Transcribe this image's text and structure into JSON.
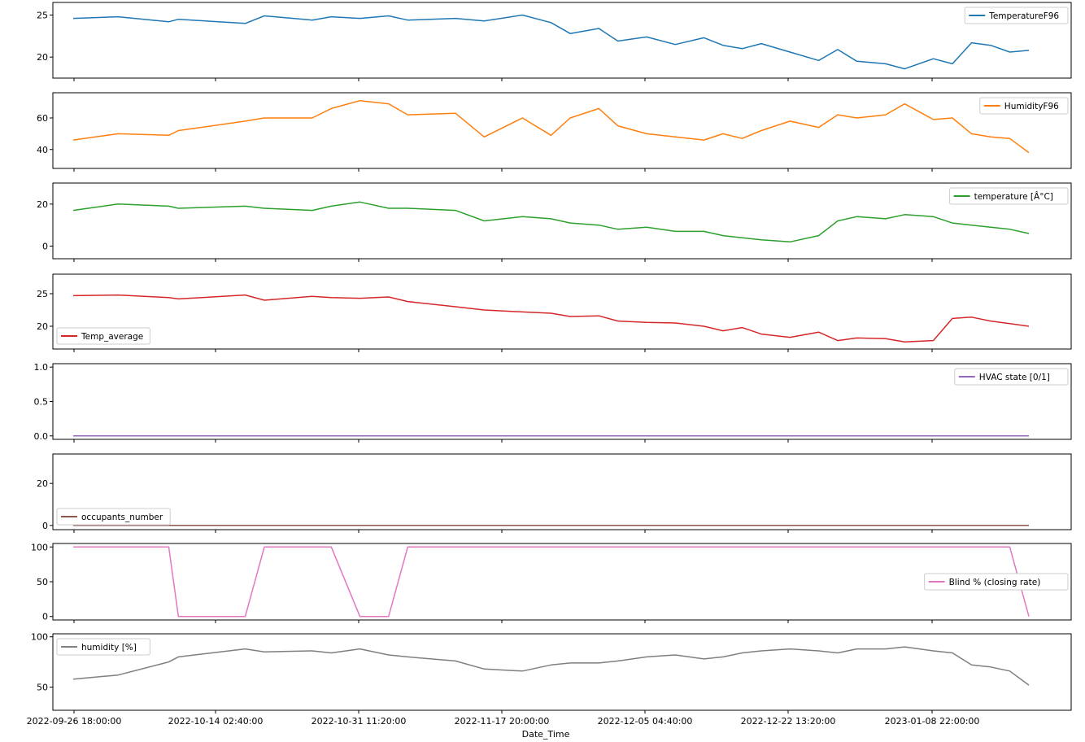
{
  "chart_data": {
    "type": "line",
    "layout": "8 vertically stacked subplots sharing the x axis",
    "xlabel": "Date_Time",
    "x_tick_labels": [
      "2022-09-26 18:00:00",
      "2022-10-14 02:40:00",
      "2022-10-31 11:20:00",
      "2022-11-17 20:00:00",
      "2022-12-05 04:40:00",
      "2022-12-22 13:20:00",
      "2023-01-08 22:00:00"
    ],
    "x_positions": [
      0,
      0.047,
      0.1,
      0.11,
      0.18,
      0.2,
      0.25,
      0.27,
      0.3,
      0.33,
      0.35,
      0.4,
      0.43,
      0.47,
      0.5,
      0.52,
      0.55,
      0.57,
      0.6,
      0.63,
      0.66,
      0.68,
      0.7,
      0.72,
      0.75,
      0.78,
      0.8,
      0.82,
      0.85,
      0.87,
      0.9,
      0.92,
      0.94,
      0.96,
      0.98,
      1.0
    ],
    "grid": false,
    "series": [
      {
        "name": "TemperatureF96",
        "color": "#1f77b4",
        "legend_loc": "upper right",
        "yticks": [
          20,
          25
        ],
        "ylim": [
          17.5,
          26.5
        ],
        "values": [
          24.6,
          24.8,
          24.2,
          24.5,
          24.0,
          24.9,
          24.4,
          24.8,
          24.6,
          24.9,
          24.4,
          24.6,
          24.3,
          25.0,
          24.1,
          22.8,
          23.4,
          21.9,
          22.4,
          21.5,
          22.3,
          21.4,
          21.0,
          21.6,
          20.6,
          19.6,
          20.9,
          19.5,
          19.2,
          18.6,
          19.8,
          19.2,
          21.7,
          21.4,
          20.6,
          20.8
        ]
      },
      {
        "name": "HumidityF96",
        "color": "#ff7f0e",
        "legend_loc": "upper right",
        "yticks": [
          40,
          60
        ],
        "ylim": [
          28,
          76
        ],
        "values": [
          46,
          50,
          49,
          52,
          58,
          60,
          60,
          66,
          71,
          69,
          62,
          63,
          48,
          60,
          49,
          60,
          66,
          55,
          50,
          48,
          46,
          50,
          47,
          52,
          58,
          54,
          62,
          60,
          62,
          69,
          59,
          60,
          50,
          48,
          47,
          38
        ]
      },
      {
        "name": "temperature [Â°C]",
        "color": "#2ca02c",
        "legend_loc": "upper right",
        "yticks": [
          0,
          20
        ],
        "ylim": [
          -6,
          30
        ],
        "values": [
          17,
          20,
          19,
          18,
          19,
          18,
          17,
          19,
          21,
          18,
          18,
          17,
          12,
          14,
          13,
          11,
          10,
          8,
          9,
          7,
          7,
          5,
          4,
          3,
          2,
          5,
          12,
          14,
          13,
          15,
          14,
          11,
          10,
          9,
          8,
          6
        ]
      },
      {
        "name": "Temp_average",
        "color": "#d62728",
        "legend_loc": "lower left",
        "yticks": [
          20,
          25
        ],
        "ylim": [
          16.5,
          28
        ],
        "values": [
          24.7,
          24.8,
          24.4,
          24.2,
          24.8,
          24.0,
          24.6,
          24.4,
          24.3,
          24.5,
          23.8,
          23.0,
          22.5,
          22.2,
          22.0,
          21.5,
          21.6,
          20.8,
          20.6,
          20.5,
          20.0,
          19.3,
          19.8,
          18.8,
          18.3,
          19.1,
          17.8,
          18.2,
          18.1,
          17.6,
          17.8,
          21.2,
          21.4,
          20.8,
          20.4,
          20.0
        ]
      },
      {
        "name": "HVAC state [0/1]",
        "color": "#9467bd",
        "legend_loc": "upper right",
        "yticks": [
          0.0,
          0.5,
          1.0
        ],
        "ylim": [
          -0.05,
          1.05
        ],
        "values": [
          0,
          0,
          0,
          0,
          0,
          0,
          0,
          0,
          0,
          0,
          0,
          0,
          0,
          0,
          0,
          0,
          0,
          0,
          0,
          0,
          0,
          0,
          0,
          0,
          0,
          0,
          0,
          0,
          0,
          0,
          0,
          0,
          0,
          0,
          0,
          0
        ]
      },
      {
        "name": "occupants_number",
        "color": "#8c564b",
        "legend_loc": "lower left",
        "yticks": [
          0,
          20
        ],
        "ylim": [
          -2,
          34
        ],
        "values": [
          0,
          0,
          0,
          0,
          0,
          0,
          0,
          0,
          0,
          0,
          0,
          0,
          0,
          0,
          0,
          0,
          0,
          0,
          0,
          0,
          0,
          0,
          0,
          0,
          0,
          0,
          0,
          0,
          0,
          0,
          0,
          0,
          0,
          0,
          0,
          0
        ]
      },
      {
        "name": "Blind % (closing rate)",
        "color": "#e377c2",
        "legend_loc": "center right",
        "yticks": [
          0,
          50,
          100
        ],
        "ylim": [
          -5,
          105
        ],
        "values": [
          100,
          100,
          100,
          0,
          0,
          100,
          100,
          100,
          0,
          0,
          100,
          100,
          100,
          100,
          100,
          100,
          100,
          100,
          100,
          100,
          100,
          100,
          100,
          100,
          100,
          100,
          100,
          100,
          100,
          100,
          100,
          100,
          100,
          100,
          100,
          0
        ]
      },
      {
        "name": "humidity [%]",
        "color": "#7f7f7f",
        "legend_loc": "upper left",
        "yticks": [
          50,
          100
        ],
        "ylim": [
          27,
          103
        ],
        "values": [
          58,
          62,
          75,
          80,
          88,
          85,
          86,
          84,
          88,
          82,
          80,
          76,
          68,
          66,
          72,
          74,
          74,
          76,
          80,
          82,
          78,
          80,
          84,
          86,
          88,
          86,
          84,
          88,
          88,
          90,
          86,
          84,
          72,
          70,
          66,
          52
        ]
      }
    ]
  }
}
